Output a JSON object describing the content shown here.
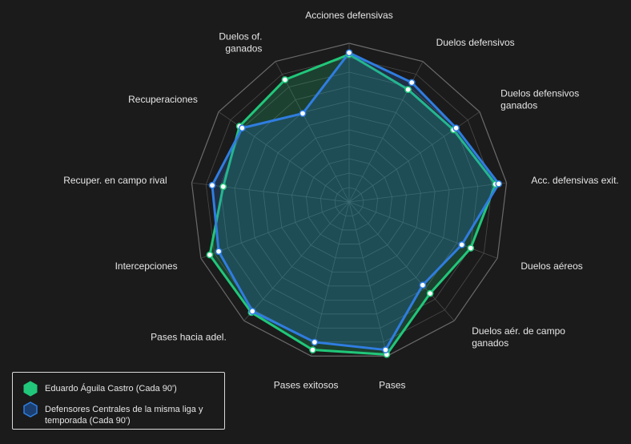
{
  "chart_data": {
    "type": "radar",
    "title": "",
    "axes": [
      {
        "label": [
          "Acciones defensivas"
        ],
        "anchor": "middle"
      },
      {
        "label": [
          "Duelos defensivos"
        ],
        "anchor": "start"
      },
      {
        "label": [
          "Duelos defensivos",
          "ganados"
        ],
        "anchor": "start"
      },
      {
        "label": [
          "Acc. defensivas exit."
        ],
        "anchor": "start"
      },
      {
        "label": [
          "Duelos aéreos"
        ],
        "anchor": "start"
      },
      {
        "label": [
          "Duelos aér. de campo",
          "ganados"
        ],
        "anchor": "start"
      },
      {
        "label": [
          "Pases"
        ],
        "anchor": "middle"
      },
      {
        "label": [
          "Pases exitosos"
        ],
        "anchor": "middle"
      },
      {
        "label": [
          "Pases hacia adel."
        ],
        "anchor": "end"
      },
      {
        "label": [
          "Intercepciones"
        ],
        "anchor": "end"
      },
      {
        "label": [
          "Recuper. en campo rival"
        ],
        "anchor": "end"
      },
      {
        "label": [
          "Recuperaciones"
        ],
        "anchor": "end"
      },
      {
        "label": [
          "Duelos of.",
          "ganados"
        ],
        "anchor": "end"
      }
    ],
    "range": [
      0,
      1
    ],
    "grid_levels": 11,
    "series": [
      {
        "name": "Eduardo Águila Castro (Cada 90')",
        "color": "#21c77a",
        "values": [
          0.93,
          0.8,
          0.8,
          0.93,
          0.82,
          0.77,
          0.99,
          0.96,
          0.93,
          0.94,
          0.8,
          0.84,
          0.87
        ]
      },
      {
        "name": "Defensores Centrales de la misma liga y temporada (Cada 90')",
        "color": "#2f7de1",
        "values": [
          0.94,
          0.85,
          0.82,
          0.95,
          0.76,
          0.7,
          0.96,
          0.91,
          0.92,
          0.88,
          0.87,
          0.82,
          0.63
        ]
      }
    ],
    "legend_position": "bottom-left"
  },
  "legend": {
    "items": [
      {
        "label": "Eduardo Águila Castro (Cada 90')",
        "icon": "green-hexagon-icon"
      },
      {
        "label": "Defensores Centrales de la misma liga y temporada (Cada 90')",
        "icon": "blue-hexagon-icon"
      }
    ]
  }
}
